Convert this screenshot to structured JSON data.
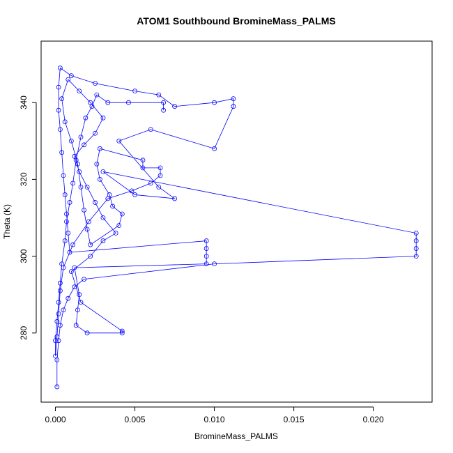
{
  "chart_data": {
    "type": "scatter",
    "title": "ATOM1 Southbound BromineMass_PALMS",
    "xlabel": "BromineMass_PALMS",
    "ylabel": "Theta (K)",
    "xlim": [
      -0.0009,
      0.0237
    ],
    "ylim": [
      262,
      356
    ],
    "x_ticks": [
      0.0,
      0.005,
      0.01,
      0.015,
      0.02
    ],
    "x_tick_labels": [
      "0.000",
      "0.005",
      "0.010",
      "0.015",
      "0.020"
    ],
    "y_ticks": [
      280,
      300,
      320,
      340
    ],
    "y_tick_labels": [
      "280",
      "300",
      "320",
      "340"
    ],
    "grid": false,
    "legend": null,
    "color": "#0000ff",
    "marker": "open-circle",
    "connected": true,
    "series": [
      {
        "points": [
          [
            0.0001,
            266
          ],
          [
            0.0001,
            273
          ],
          [
            0.0002,
            278
          ],
          [
            0.0003,
            282
          ],
          [
            0.0005,
            286
          ],
          [
            0.0008,
            289
          ],
          [
            0.0012,
            292
          ],
          [
            0.0018,
            294
          ],
          [
            0.01,
            298
          ],
          [
            0.0227,
            300
          ],
          [
            0.0227,
            302
          ],
          [
            0.0227,
            304
          ],
          [
            0.0227,
            306
          ],
          [
            0.003,
            322
          ],
          [
            0.005,
            316
          ],
          [
            0.0075,
            315
          ],
          [
            0.0065,
            318
          ],
          [
            0.004,
            330
          ],
          [
            0.006,
            333
          ],
          [
            0.01,
            328
          ],
          [
            0.0112,
            339
          ],
          [
            0.0112,
            341
          ],
          [
            0.01,
            340
          ],
          [
            0.0075,
            339
          ],
          [
            0.0065,
            342
          ],
          [
            0.005,
            343
          ],
          [
            0.0025,
            345
          ],
          [
            0.001,
            347
          ],
          [
            0.0003,
            349
          ],
          [
            0.0002,
            344
          ],
          [
            0.0002,
            338
          ],
          [
            0.0003,
            333
          ],
          [
            0.0004,
            327
          ],
          [
            0.0005,
            321
          ],
          [
            0.0006,
            316
          ],
          [
            0.0007,
            311
          ],
          [
            0.0008,
            306
          ],
          [
            0.0009,
            301
          ],
          [
            0.0095,
            304
          ],
          [
            0.0095,
            302
          ],
          [
            0.0095,
            300
          ],
          [
            0.0095,
            298
          ],
          [
            0.0012,
            297
          ],
          [
            0.0015,
            290
          ],
          [
            0.0014,
            286
          ],
          [
            0.0013,
            282
          ],
          [
            0.002,
            280
          ],
          [
            0.0042,
            280
          ],
          [
            0.0042,
            280.5
          ],
          [
            0.0016,
            288
          ],
          [
            0.001,
            296
          ],
          [
            0.0022,
            300
          ],
          [
            0.003,
            304
          ],
          [
            0.0038,
            306
          ],
          [
            0.003,
            310
          ],
          [
            0.0025,
            314
          ],
          [
            0.002,
            318
          ],
          [
            0.0015,
            322
          ],
          [
            0.0012,
            326
          ],
          [
            0.0018,
            329
          ],
          [
            0.0025,
            332
          ],
          [
            0.003,
            336
          ],
          [
            0.0022,
            340
          ],
          [
            0.0015,
            343
          ],
          [
            0.0008,
            346
          ],
          [
            0.0004,
            341
          ],
          [
            0.0006,
            335
          ],
          [
            0.001,
            330
          ],
          [
            0.0014,
            324
          ],
          [
            0.0016,
            318
          ],
          [
            0.0018,
            312
          ],
          [
            0.002,
            307
          ],
          [
            0.0022,
            303
          ],
          [
            0.004,
            308
          ],
          [
            0.0042,
            311
          ],
          [
            0.0036,
            313
          ],
          [
            0.0034,
            316
          ],
          [
            0.0028,
            320
          ],
          [
            0.0026,
            324
          ],
          [
            0.0028,
            328
          ],
          [
            0.0055,
            325
          ],
          [
            0.0055,
            323
          ],
          [
            0.0066,
            323
          ],
          [
            0.0066,
            321
          ],
          [
            0.006,
            319
          ],
          [
            0.0048,
            317
          ],
          [
            0.0033,
            315
          ],
          [
            0.0021,
            309
          ],
          [
            0.0011,
            303
          ],
          [
            0.0005,
            297
          ],
          [
            0.0003,
            291
          ],
          [
            0.0002,
            285
          ],
          [
            0.0001,
            279
          ],
          [
            0.0,
            274
          ],
          [
            0.0,
            278
          ],
          [
            0.0001,
            283
          ],
          [
            0.0002,
            288
          ],
          [
            0.0003,
            293
          ],
          [
            0.0004,
            298
          ],
          [
            0.0006,
            304
          ],
          [
            0.0007,
            309
          ],
          [
            0.0009,
            314
          ],
          [
            0.0011,
            319
          ],
          [
            0.0013,
            325
          ],
          [
            0.0016,
            331
          ],
          [
            0.0019,
            336
          ],
          [
            0.0023,
            339
          ],
          [
            0.0026,
            342
          ],
          [
            0.0033,
            340
          ],
          [
            0.0046,
            340
          ],
          [
            0.0068,
            340
          ],
          [
            0.0068,
            338
          ]
        ]
      }
    ]
  }
}
